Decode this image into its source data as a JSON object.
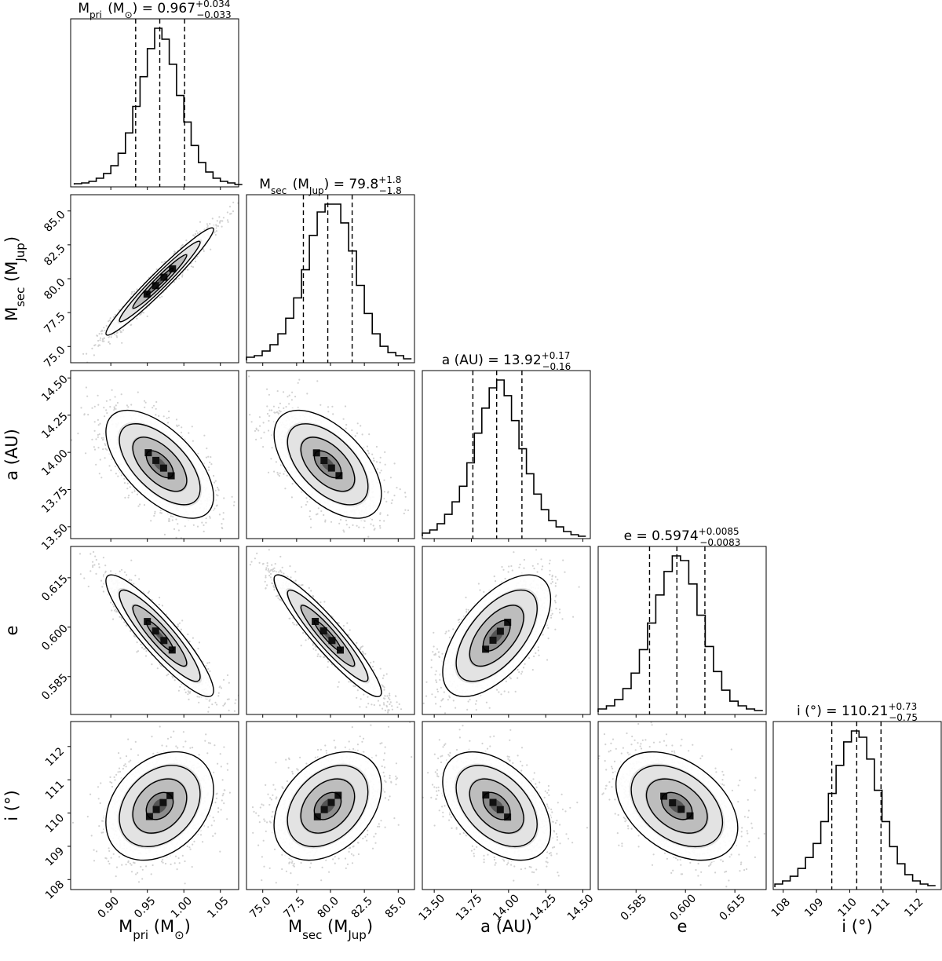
{
  "chart_data": {
    "type": "corner",
    "parameters": [
      {
        "key": "mpri",
        "label": "M_pri (M_⊙)",
        "title": "M_pri (M_⊙) = 0.967 +0.034 −0.033",
        "label_parts": {
          "base": "M",
          "sub": "pri",
          "paren": "M",
          "paren_sub": "⊙"
        },
        "title_parts": {
          "value": "0.967",
          "plus": "+0.034",
          "minus": "−0.033"
        },
        "median": 0.967,
        "err_plus": 0.034,
        "err_minus": 0.033,
        "range": [
          0.845,
          1.075
        ],
        "ticks": [
          0.9,
          0.95,
          1.0,
          1.05
        ],
        "tick_labels": [
          "0.90",
          "0.95",
          "1.00",
          "1.05"
        ],
        "hist_bins": [
          0.85,
          0.86,
          0.87,
          0.88,
          0.89,
          0.9,
          0.91,
          0.92,
          0.93,
          0.94,
          0.95,
          0.96,
          0.97,
          0.98,
          0.99,
          1.0,
          1.01,
          1.02,
          1.03,
          1.04,
          1.05,
          1.06,
          1.07
        ],
        "hist_counts": [
          0.005,
          0.01,
          0.02,
          0.04,
          0.07,
          0.12,
          0.2,
          0.33,
          0.5,
          0.69,
          0.87,
          1.0,
          0.93,
          0.77,
          0.57,
          0.4,
          0.25,
          0.14,
          0.08,
          0.04,
          0.02,
          0.01,
          0.0
        ]
      },
      {
        "key": "msec",
        "label": "M_sec (M_Jup)",
        "title": "M_sec (M_Jup) = 79.8 +1.8 −1.8",
        "label_parts": {
          "base": "M",
          "sub": "sec",
          "paren": "M",
          "paren_sub": "Jup"
        },
        "title_parts": {
          "value": "79.8",
          "plus": "+1.8",
          "minus": "−1.8"
        },
        "median": 79.8,
        "err_plus": 1.8,
        "err_minus": 1.8,
        "range": [
          73.8,
          86.2
        ],
        "ticks": [
          75.0,
          77.5,
          80.0,
          82.5,
          85.0
        ],
        "tick_labels": [
          "75.0",
          "77.5",
          "80.0",
          "82.5",
          "85.0"
        ],
        "hist_bins": [
          73.8,
          74.38,
          74.96,
          75.54,
          76.12,
          76.7,
          77.28,
          77.86,
          78.44,
          79.02,
          79.6,
          80.18,
          80.76,
          81.34,
          81.92,
          82.5,
          83.08,
          83.66,
          84.24,
          84.82,
          85.4,
          85.98
        ],
        "hist_counts": [
          0.02,
          0.03,
          0.06,
          0.1,
          0.17,
          0.27,
          0.4,
          0.58,
          0.8,
          0.95,
          1.0,
          1.0,
          0.88,
          0.7,
          0.48,
          0.3,
          0.17,
          0.09,
          0.05,
          0.03,
          0.01
        ]
      },
      {
        "key": "a",
        "label": "a (AU)",
        "title": "a (AU) = 13.92 +0.17 −0.16",
        "label_parts": {
          "base": "a (AU)",
          "sub": "",
          "paren": "",
          "paren_sub": ""
        },
        "title_parts": {
          "value": "13.92",
          "plus": "+0.17",
          "minus": "−0.16"
        },
        "median": 13.92,
        "err_plus": 0.17,
        "err_minus": 0.16,
        "range": [
          13.42,
          14.55
        ],
        "ticks": [
          13.5,
          13.75,
          14.0,
          14.25,
          14.5
        ],
        "tick_labels": [
          "13.50",
          "13.75",
          "14.00",
          "14.25",
          "14.50"
        ],
        "hist_bins": [
          13.42,
          13.47,
          13.52,
          13.57,
          13.62,
          13.67,
          13.72,
          13.77,
          13.82,
          13.87,
          13.92,
          13.97,
          14.02,
          14.07,
          14.12,
          14.17,
          14.22,
          14.27,
          14.32,
          14.37,
          14.42,
          14.47,
          14.52
        ],
        "hist_counts": [
          0.02,
          0.04,
          0.08,
          0.14,
          0.22,
          0.32,
          0.47,
          0.66,
          0.82,
          0.95,
          1.0,
          0.9,
          0.74,
          0.56,
          0.4,
          0.27,
          0.17,
          0.1,
          0.06,
          0.03,
          0.01,
          0.0
        ]
      },
      {
        "key": "e",
        "label": "e",
        "title": "e = 0.5974 +0.0085 −0.0083",
        "label_parts": {
          "base": "e",
          "sub": "",
          "paren": "",
          "paren_sub": ""
        },
        "title_parts": {
          "value": "0.5974",
          "plus": "+0.0085",
          "minus": "−0.0083"
        },
        "median": 0.5974,
        "err_plus": 0.0085,
        "err_minus": 0.0083,
        "range": [
          0.5735,
          0.6245
        ],
        "ticks": [
          0.585,
          0.6,
          0.615
        ],
        "tick_labels": [
          "0.585",
          "0.600",
          "0.615"
        ],
        "hist_bins": [
          0.5735,
          0.576,
          0.5785,
          0.581,
          0.5835,
          0.586,
          0.5885,
          0.591,
          0.5935,
          0.596,
          0.5985,
          0.601,
          0.6035,
          0.606,
          0.6085,
          0.611,
          0.6135,
          0.616,
          0.6185,
          0.621,
          0.6235
        ],
        "hist_counts": [
          0.02,
          0.04,
          0.08,
          0.15,
          0.25,
          0.4,
          0.57,
          0.75,
          0.9,
          1.0,
          0.97,
          0.82,
          0.62,
          0.42,
          0.26,
          0.14,
          0.07,
          0.04,
          0.02,
          0.01
        ]
      },
      {
        "key": "i",
        "label": "i (°)",
        "title": "i (°) = 110.21 +0.73 −0.75",
        "label_parts": {
          "base": "i (°)",
          "sub": "",
          "paren": "",
          "paren_sub": ""
        },
        "title_parts": {
          "value": "110.21",
          "plus": "+0.73",
          "minus": "−0.75"
        },
        "median": 110.21,
        "err_plus": 0.73,
        "err_minus": 0.75,
        "range": [
          107.7,
          112.75
        ],
        "ticks": [
          108,
          109,
          110,
          111,
          112
        ],
        "tick_labels": [
          "108",
          "109",
          "110",
          "111",
          "112"
        ],
        "hist_bins": [
          107.75,
          107.98,
          108.21,
          108.44,
          108.67,
          108.9,
          109.13,
          109.36,
          109.59,
          109.82,
          110.05,
          110.28,
          110.51,
          110.74,
          110.97,
          111.2,
          111.43,
          111.66,
          111.89,
          112.12,
          112.35,
          112.58
        ],
        "hist_counts": [
          0.02,
          0.04,
          0.07,
          0.12,
          0.19,
          0.28,
          0.42,
          0.6,
          0.78,
          0.93,
          1.0,
          0.96,
          0.82,
          0.62,
          0.42,
          0.26,
          0.15,
          0.08,
          0.04,
          0.02,
          0.01
        ]
      }
    ],
    "correlations": [
      {
        "row": "msec",
        "col": "mpri",
        "rho": 0.97
      },
      {
        "row": "a",
        "col": "mpri",
        "rho": -0.6
      },
      {
        "row": "a",
        "col": "msec",
        "rho": -0.55
      },
      {
        "row": "e",
        "col": "mpri",
        "rho": -0.9
      },
      {
        "row": "e",
        "col": "msec",
        "rho": -0.93
      },
      {
        "row": "e",
        "col": "a",
        "rho": 0.6
      },
      {
        "row": "i",
        "col": "mpri",
        "rho": 0.3
      },
      {
        "row": "i",
        "col": "msec",
        "rho": 0.35
      },
      {
        "row": "i",
        "col": "a",
        "rho": -0.45
      },
      {
        "row": "i",
        "col": "e",
        "rho": -0.4
      }
    ],
    "quantile_lines": "dashed",
    "contour_levels_sigma": [
      0.5,
      1.0,
      1.5,
      2.0
    ],
    "sample_points_per_panel": 2200,
    "colors": {
      "line": "#000000",
      "points": "#9a9a9a",
      "density_dark": "#000000",
      "density_light": "#ffffff"
    }
  }
}
